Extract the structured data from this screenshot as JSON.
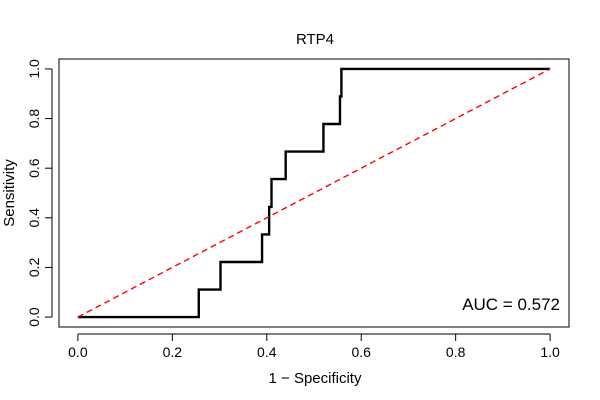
{
  "chart_data": {
    "type": "line",
    "title": "RTP4",
    "xlabel": "1 − Specificity",
    "ylabel": "Sensitivity",
    "xlim": [
      -0.04,
      1.04
    ],
    "ylim": [
      -0.04,
      1.04
    ],
    "x_ticks": [
      0.0,
      0.2,
      0.4,
      0.6,
      0.8,
      1.0
    ],
    "y_ticks": [
      0.0,
      0.2,
      0.4,
      0.6,
      0.8,
      1.0
    ],
    "x_tick_labels": [
      "0.0",
      "0.2",
      "0.4",
      "0.6",
      "0.8",
      "1.0"
    ],
    "y_tick_labels": [
      "0.0",
      "0.2",
      "0.4",
      "0.6",
      "0.8",
      "1.0"
    ],
    "grid": false,
    "annotation": "AUC = 0.572",
    "series": [
      {
        "role": "roc-curve",
        "color": "#000000",
        "style": "solid",
        "x": [
          0.0,
          0.256,
          0.256,
          0.302,
          0.302,
          0.39,
          0.39,
          0.405,
          0.405,
          0.41,
          0.41,
          0.44,
          0.44,
          0.52,
          0.52,
          0.555,
          0.555,
          0.558,
          0.558,
          1.0
        ],
        "y": [
          0.0,
          0.0,
          0.111,
          0.111,
          0.222,
          0.222,
          0.333,
          0.333,
          0.444,
          0.444,
          0.556,
          0.556,
          0.667,
          0.667,
          0.778,
          0.778,
          0.889,
          0.889,
          1.0,
          1.0
        ]
      },
      {
        "role": "reference-diagonal",
        "color": "#ff0000",
        "style": "dashed",
        "x": [
          0.0,
          1.0
        ],
        "y": [
          0.0,
          1.0
        ]
      }
    ]
  }
}
